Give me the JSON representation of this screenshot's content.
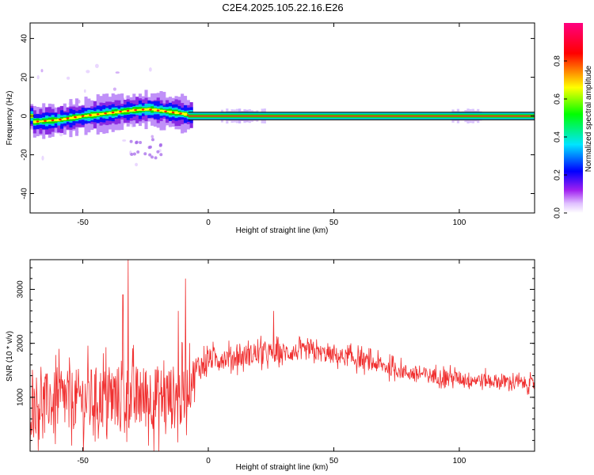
{
  "title": "C2E4.2025.105.22.16.E26",
  "chart_data": [
    {
      "type": "heatmap",
      "xlabel": "Height of straight line (km)",
      "ylabel": "Frequency (Hz)",
      "xlim": [
        -71,
        130
      ],
      "ylim": [
        -50,
        48
      ],
      "xticks": [
        -50,
        0,
        50,
        100
      ],
      "yticks": [
        -40,
        -20,
        0,
        20,
        40
      ],
      "colorbar": {
        "label": "Normalized spectral amplitude",
        "range": [
          0.0,
          1.0
        ],
        "ticks": [
          "0.0",
          "0.2",
          "0.4",
          "0.6",
          "0.8"
        ],
        "colors": [
          "#ffffff",
          "#a020f0",
          "#0000ff",
          "#00e5ff",
          "#00ff00",
          "#ffff00",
          "#ff0000",
          "#ff0080"
        ]
      },
      "ridge": [
        {
          "x": -70,
          "y": -3
        },
        {
          "x": -60,
          "y": -2
        },
        {
          "x": -50,
          "y": 0
        },
        {
          "x": -40,
          "y": 1.5
        },
        {
          "x": -30,
          "y": 3
        },
        {
          "x": -24,
          "y": 3.5
        },
        {
          "x": -18,
          "y": 2.5
        },
        {
          "x": -12,
          "y": 1.5
        },
        {
          "x": -8,
          "y": 0.5
        },
        {
          "x": 0,
          "y": 0
        },
        {
          "x": 130,
          "y": 0
        }
      ]
    },
    {
      "type": "line",
      "xlabel": "Height of straight line (km)",
      "ylabel": "SNR (10 * v/v)",
      "xlim": [
        -71,
        130
      ],
      "ylim": [
        0,
        3550
      ],
      "xticks": [
        -50,
        0,
        50,
        100
      ],
      "yticks": [
        1000,
        2000,
        3000
      ],
      "color": "#f03030",
      "envelope": [
        {
          "x": -71,
          "mean": 900,
          "amp": 650
        },
        {
          "x": -40,
          "mean": 1000,
          "amp": 750
        },
        {
          "x": -10,
          "mean": 1000,
          "amp": 750
        },
        {
          "x": -5,
          "mean": 1500,
          "amp": 350
        },
        {
          "x": 0,
          "mean": 1700,
          "amp": 250
        },
        {
          "x": 20,
          "mean": 1800,
          "amp": 250
        },
        {
          "x": 40,
          "mean": 1850,
          "amp": 200
        },
        {
          "x": 60,
          "mean": 1700,
          "amp": 200
        },
        {
          "x": 80,
          "mean": 1450,
          "amp": 180
        },
        {
          "x": 100,
          "mean": 1350,
          "amp": 170
        },
        {
          "x": 130,
          "mean": 1250,
          "amp": 150
        }
      ],
      "peaks": [
        {
          "x": -32,
          "y": 3550
        },
        {
          "x": -9,
          "y": 3200
        },
        {
          "x": -34,
          "y": 2900
        },
        {
          "x": -12,
          "y": 2600
        },
        {
          "x": 26,
          "y": 2600
        }
      ]
    }
  ]
}
